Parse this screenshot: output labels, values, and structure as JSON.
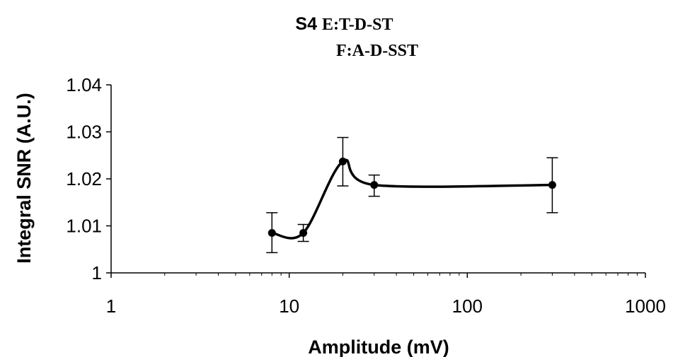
{
  "chart_data": {
    "type": "line",
    "title": {
      "prefix": "S4",
      "line1": "E:T-D-ST",
      "line2": "F:A-D-SST"
    },
    "xlabel": "Amplitude (mV)",
    "ylabel": "Integral SNR (A.U.)",
    "x_scale": "log",
    "xlim": [
      1,
      1000
    ],
    "ylim": [
      1,
      1.04
    ],
    "x_ticks": [
      "1",
      "10",
      "100",
      "1000"
    ],
    "y_ticks": [
      "1",
      "1.01",
      "1.02",
      "1.03",
      "1.04"
    ],
    "grid": false,
    "legend": "none",
    "line_color": "#000000",
    "smooth": true,
    "series": [
      {
        "x": [
          8,
          12,
          20,
          30,
          300
        ],
        "y": [
          1.0085,
          1.0085,
          1.0237,
          1.0187,
          1.0187
        ],
        "err_high": [
          1.0128,
          1.0103,
          1.0288,
          1.0208,
          1.0245
        ],
        "err_low": [
          1.0043,
          1.0067,
          1.0185,
          1.0163,
          1.0128
        ]
      }
    ]
  }
}
